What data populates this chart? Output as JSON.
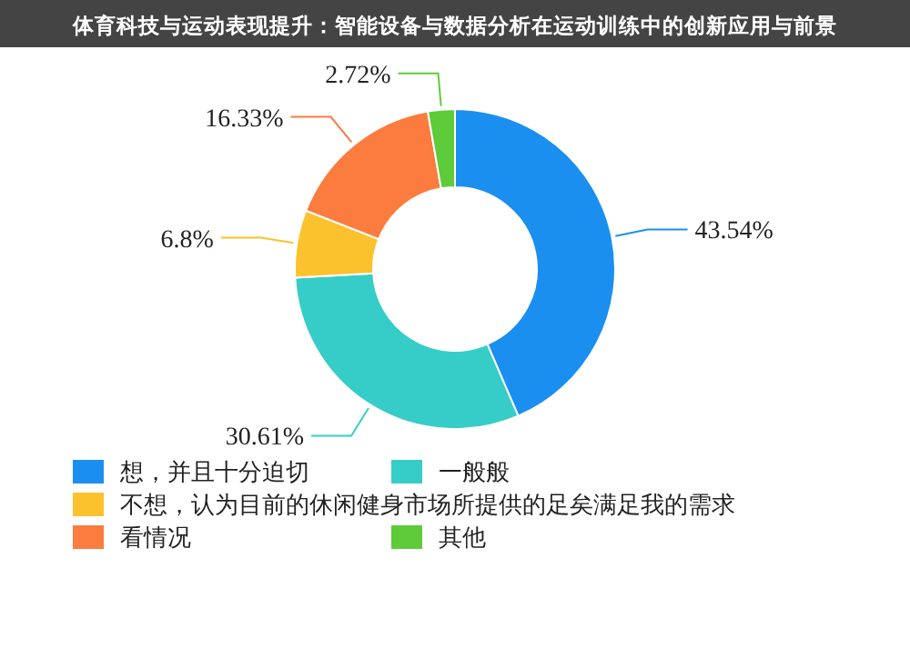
{
  "chart_data": {
    "type": "donut",
    "title": "体育科技与运动表现提升：智能设备与数据分析在运动训练中的创新应用与前景",
    "categories": [
      "想，并且十分迫切",
      "一般般",
      "不想，认为目前的休闲健身市场所提供的足矣满足我的需求",
      "看情况",
      "其他"
    ],
    "values": [
      43.54,
      30.61,
      6.8,
      16.33,
      2.72
    ],
    "value_labels": [
      "43.54%",
      "30.61%",
      "6.8%",
      "16.33%",
      "2.72%"
    ],
    "colors": [
      "#1a8ff0",
      "#36cdc8",
      "#fcc22e",
      "#fb7c3e",
      "#5ecb3a"
    ],
    "legend": "bottom"
  }
}
